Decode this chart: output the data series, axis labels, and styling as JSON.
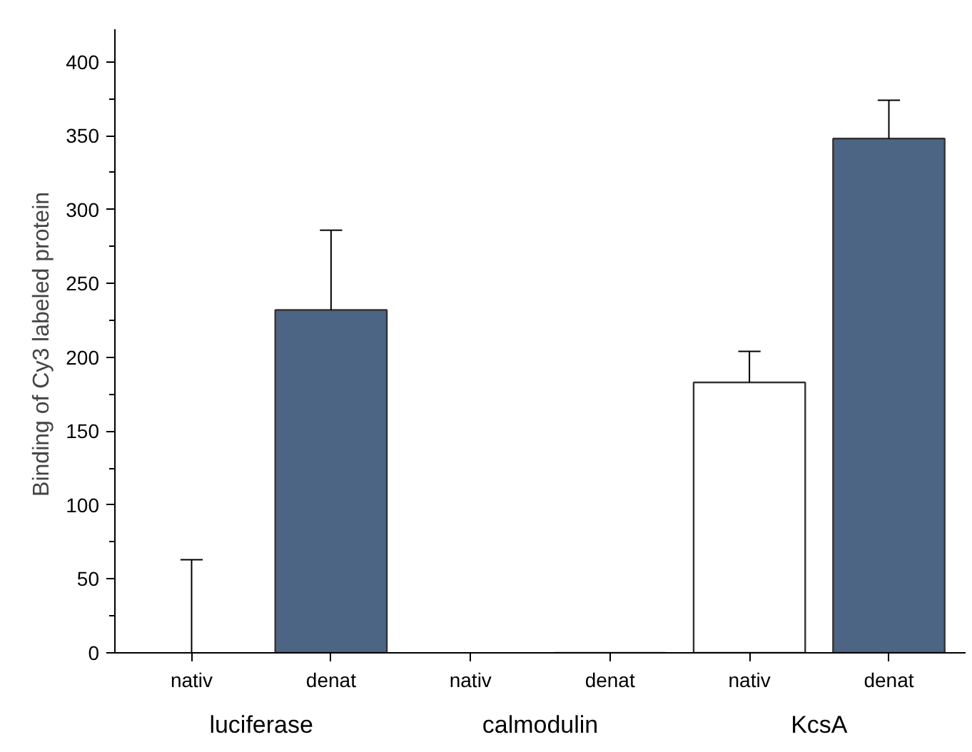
{
  "chart_data": {
    "type": "bar",
    "ylabel": "Binding of  Cy3 labeled protein",
    "categories": [
      "nativ",
      "denat",
      "nativ",
      "denat",
      "nativ",
      "denat"
    ],
    "values": [
      0,
      232,
      0,
      0,
      183,
      348
    ],
    "colors": [
      "#ffffff",
      "#4d6585",
      "#ffffff",
      "#4d6585",
      "#ffffff",
      "#4d6585"
    ],
    "errors": [
      [
        0,
        63
      ],
      [
        232,
        286
      ],
      null,
      null,
      [
        183,
        204
      ],
      [
        348,
        374
      ]
    ],
    "ylim": [
      0,
      422
    ],
    "yticks": [
      0,
      50,
      100,
      150,
      200,
      250,
      300,
      350,
      400
    ],
    "annotations": [
      "luciferase",
      "calmodulin",
      "KcsA"
    ],
    "grid": false
  }
}
